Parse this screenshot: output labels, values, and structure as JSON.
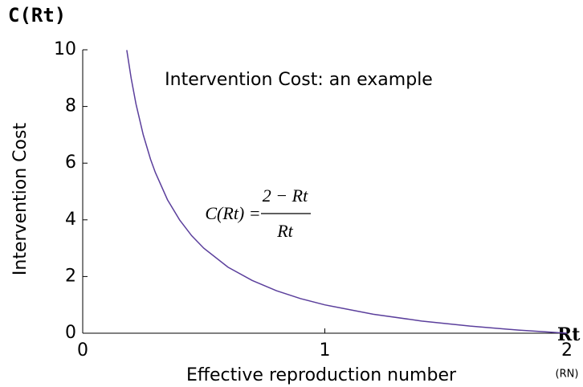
{
  "chart_data": {
    "type": "line",
    "title": "Intervention Cost: an example",
    "xlabel": "Effective reproduction number",
    "ylabel": "Intervention Cost",
    "corner_y": "C(Rt)",
    "corner_x": "Rt",
    "x2_note": "(RN)",
    "formula": {
      "lhs": "C(Rt) =",
      "numerator": "2 − Rt",
      "denominator": "Rt"
    },
    "x": [
      0.182,
      0.2,
      0.22,
      0.25,
      0.28,
      0.3,
      0.35,
      0.4,
      0.45,
      0.5,
      0.6,
      0.7,
      0.8,
      0.9,
      1,
      1.2,
      1.4,
      1.6,
      1.8,
      2
    ],
    "series": [
      {
        "color": "#5b3f9c",
        "values": [
          9.99,
          9,
          8.09,
          7,
          6.14,
          5.67,
          4.71,
          4,
          3.44,
          3,
          2.33,
          1.86,
          1.5,
          1.22,
          1,
          0.67,
          0.43,
          0.25,
          0.11,
          0
        ]
      }
    ],
    "xlim": [
      0,
      2
    ],
    "xticks": [
      0,
      1,
      2
    ],
    "ylim": [
      0,
      10
    ],
    "yticks": [
      0,
      2,
      4,
      6,
      8,
      10
    ]
  }
}
